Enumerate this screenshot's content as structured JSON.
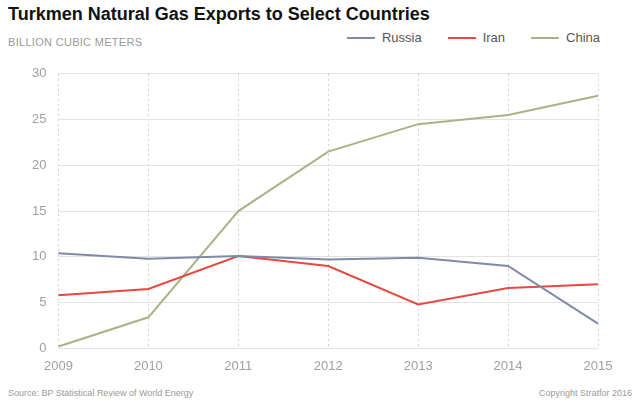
{
  "chart_data": {
    "type": "line",
    "title": "Turkmen Natural Gas Exports to Select Countries",
    "ylabel": "BILLION CUBIC METERS",
    "categories": [
      "2009",
      "2010",
      "2011",
      "2012",
      "2013",
      "2014",
      "2015"
    ],
    "series": [
      {
        "name": "Russia",
        "color": "#7d8aa8",
        "values": [
          10.4,
          9.8,
          10.1,
          9.7,
          9.9,
          9.0,
          2.7
        ]
      },
      {
        "name": "Iran",
        "color": "#e5493f",
        "values": [
          5.8,
          6.5,
          10.1,
          9.0,
          4.8,
          6.6,
          7.0
        ]
      },
      {
        "name": "China",
        "color": "#a8b386",
        "values": [
          0.2,
          3.4,
          15.0,
          21.5,
          24.5,
          25.5,
          27.6
        ]
      }
    ],
    "ylim": [
      0,
      30
    ],
    "yticks": [
      0,
      5,
      10,
      15,
      20,
      25,
      30
    ],
    "grid": true,
    "legend": "top-right",
    "annotations": [
      "Source: BP Statistical Review of World Energy",
      "Copyright Stratfor 2016"
    ]
  }
}
